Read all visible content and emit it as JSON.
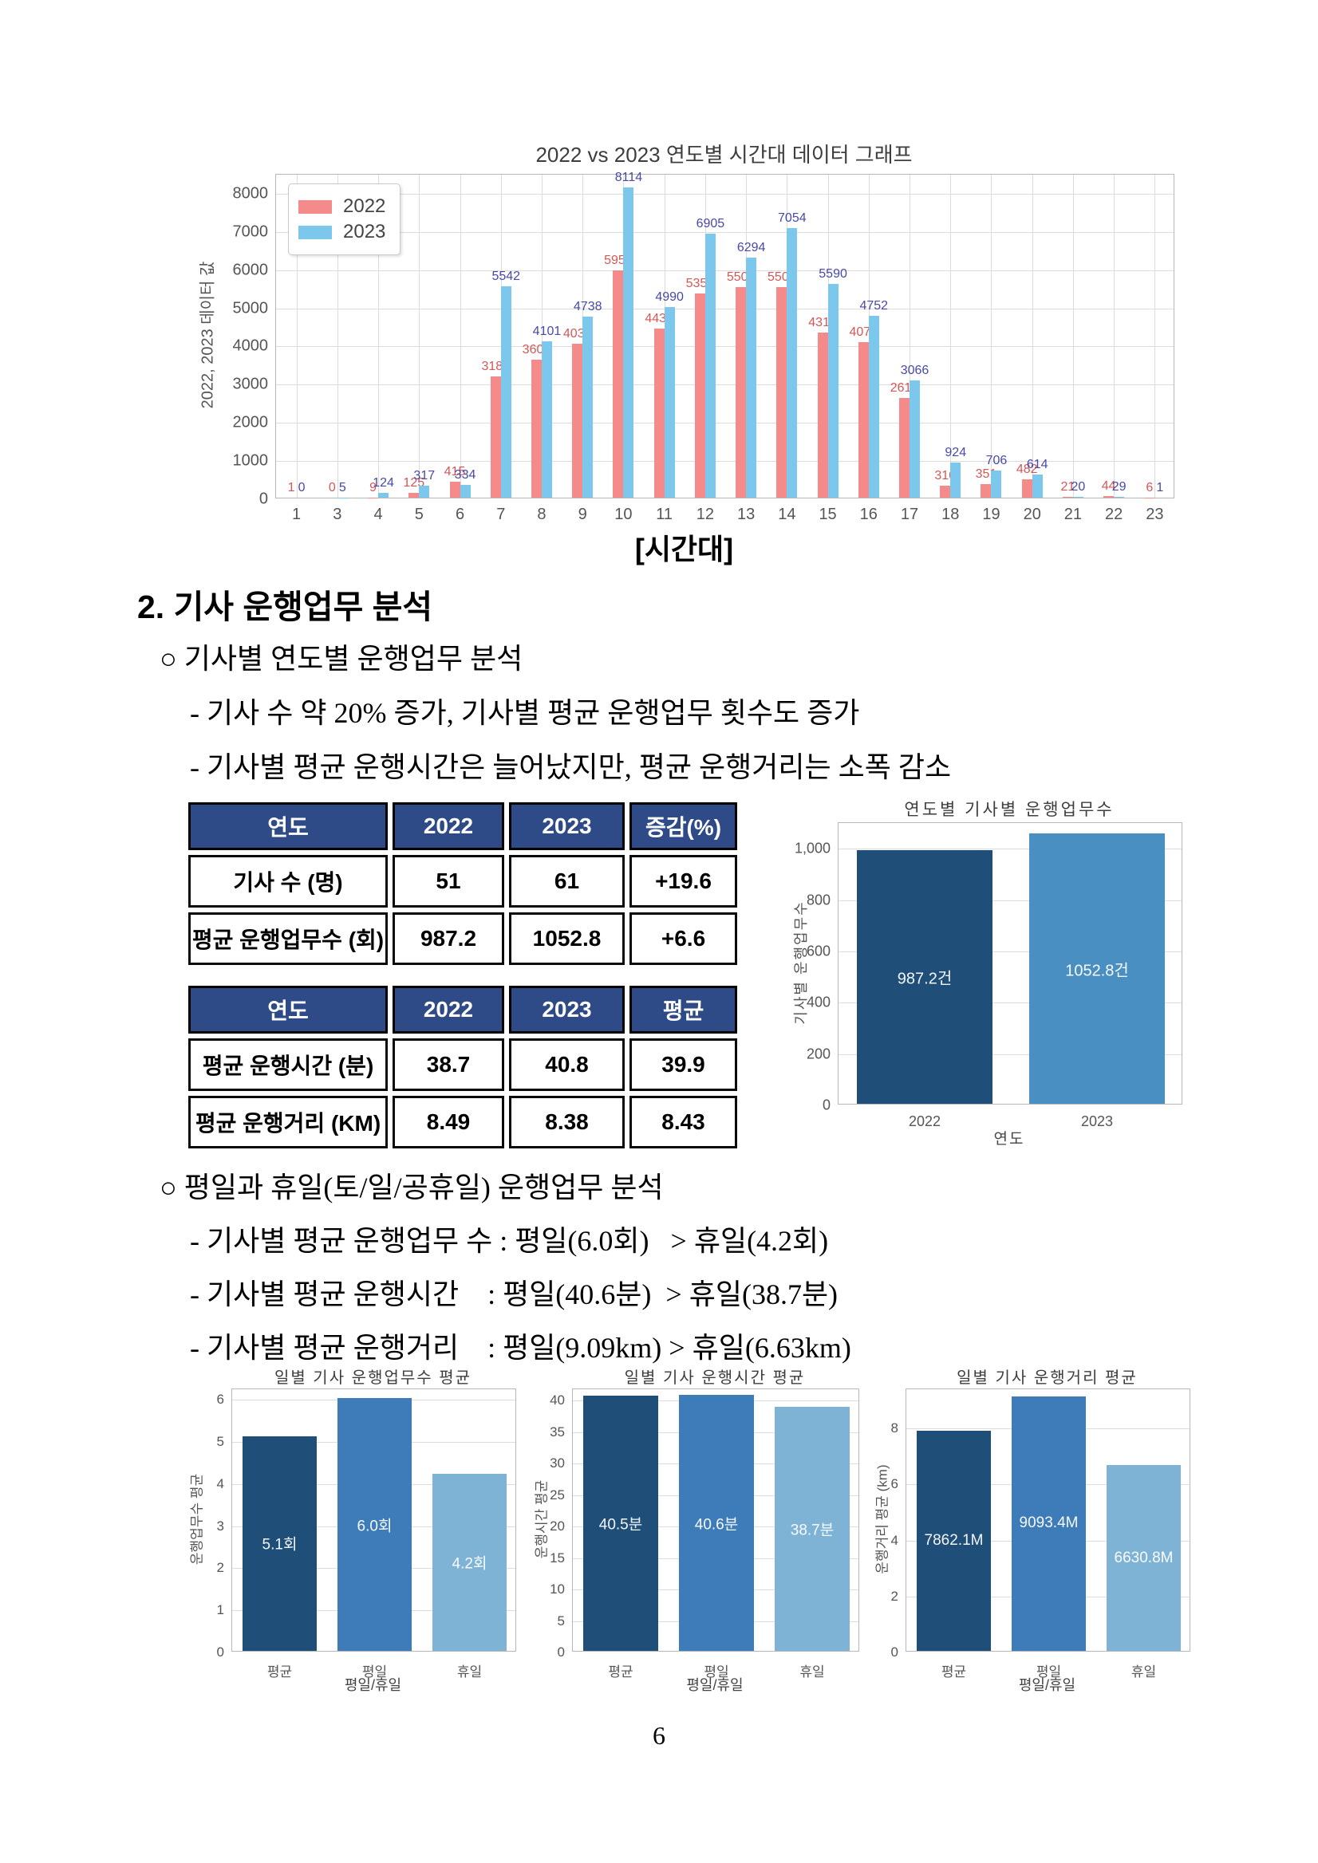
{
  "page_number": "6",
  "headings": {
    "section": "2. 기사 운행업무 분석",
    "bullet1": "○ 기사별 연도별 운행업무 분석",
    "bullet1_items": [
      "- 기사 수 약 20% 증가, 기사별 평균 운행업무 횟수도 증가",
      "- 기사별 평균 운행시간은 늘어났지만, 평균 운행거리는 소폭 감소"
    ],
    "bullet2": "○ 평일과 휴일(토/일/공휴일) 운행업무 분석",
    "bullet2_items": [
      "- 기사별 평균 운행업무 수 : 평일(6.0회)   > 휴일(4.2회)",
      "- 기사별 평균 운행시간    : 평일(40.6분)  > 휴일(38.7분)",
      "- 기사별 평균 운행거리    : 평일(9.09km) > 휴일(6.63km)"
    ]
  },
  "tables": [
    {
      "headers": [
        "연도",
        "2022",
        "2023",
        "증감(%)"
      ],
      "rows": [
        [
          "기사 수 (명)",
          "51",
          "61",
          "+19.6"
        ],
        [
          "평균 운행업무수 (회)",
          "987.2",
          "1052.8",
          "+6.6"
        ]
      ]
    },
    {
      "headers": [
        "연도",
        "2022",
        "2023",
        "평균"
      ],
      "rows": [
        [
          "평균 운행시간 (분)",
          "38.7",
          "40.8",
          "39.9"
        ],
        [
          "평균 운행거리 (KM)",
          "8.49",
          "8.38",
          "8.43"
        ]
      ]
    }
  ],
  "chart_data": [
    {
      "id": "hourly",
      "type": "bar",
      "title": "2022 vs 2023 연도별 시간대 데이터 그래프",
      "xlabel": "[시간대]",
      "ylabel": "2022, 2023 데이터 값",
      "categories": [
        "1",
        "3",
        "4",
        "5",
        "6",
        "7",
        "8",
        "9",
        "10",
        "11",
        "12",
        "13",
        "14",
        "15",
        "16",
        "17",
        "18",
        "19",
        "20",
        "21",
        "22",
        "23"
      ],
      "series": [
        {
          "name": "2022",
          "color": "#f48a8a",
          "label_color": "#d45757",
          "values": [
            1,
            0,
            9,
            125,
            415,
            3181,
            3604,
            4034,
            5954,
            4430,
            5354,
            5504,
            5507,
            4315,
            4078,
            2619,
            310,
            351,
            482,
            21,
            44,
            6
          ]
        },
        {
          "name": "2023",
          "color": "#7cc8ec",
          "label_color": "#4848a8",
          "values": [
            0,
            5,
            124,
            317,
            334,
            5542,
            4101,
            4738,
            8114,
            4990,
            6905,
            6294,
            7054,
            5590,
            4752,
            3066,
            924,
            706,
            614,
            20,
            29,
            1
          ]
        }
      ],
      "ylim": [
        0,
        8500
      ],
      "yticks": [
        0,
        1000,
        2000,
        3000,
        4000,
        5000,
        6000,
        7000,
        8000
      ],
      "legend_position": "upper left",
      "grid": true
    },
    {
      "id": "yearly",
      "type": "bar",
      "title": "연도별 기사별 운행업무수",
      "xlabel": "연도",
      "ylabel": "기사별 운행업무수",
      "categories": [
        "2022",
        "2023"
      ],
      "values": [
        987.2,
        1052.8
      ],
      "bar_labels": [
        "987.2건",
        "1052.8건"
      ],
      "colors": [
        "#1f4e79",
        "#4a8fc2"
      ],
      "ylim": [
        0,
        1100
      ],
      "yticks": [
        0,
        200,
        400,
        600,
        800,
        1000
      ],
      "ytick_labels": [
        "0",
        "200",
        "400",
        "600",
        "800",
        "1,000"
      ],
      "grid": true
    },
    {
      "id": "daily-count",
      "type": "bar",
      "title": "일별 기사 운행업무수 평균",
      "xlabel": "평일/휴일",
      "ylabel": "운행업무수 평균",
      "categories": [
        "평균",
        "평일",
        "휴일"
      ],
      "values": [
        5.1,
        6.0,
        4.2
      ],
      "bar_labels": [
        "5.1회",
        "6.0회",
        "4.2회"
      ],
      "colors": [
        "#1f4e79",
        "#3d7cb8",
        "#7fb3d6"
      ],
      "ylim": [
        0,
        6.25
      ],
      "yticks": [
        0,
        1,
        2,
        3,
        4,
        5,
        6
      ],
      "grid": true
    },
    {
      "id": "daily-minutes",
      "type": "bar",
      "title": "일별 기사 운행시간 평균",
      "xlabel": "평일/휴일",
      "ylabel": "운행시간 평균",
      "categories": [
        "평균",
        "평일",
        "휴일"
      ],
      "values": [
        40.5,
        40.6,
        38.7
      ],
      "bar_labels": [
        "40.5분",
        "40.6분",
        "38.7분"
      ],
      "colors": [
        "#1f4e79",
        "#3d7cb8",
        "#7fb3d6"
      ],
      "ylim": [
        0,
        41.8
      ],
      "yticks": [
        0,
        5,
        10,
        15,
        20,
        25,
        30,
        35,
        40
      ],
      "grid": true
    },
    {
      "id": "daily-distance",
      "type": "bar",
      "title": "일별 기사 운행거리 평균",
      "xlabel": "평일/휴일",
      "ylabel": "운행거리 평균 (km)",
      "categories": [
        "평균",
        "평일",
        "휴일"
      ],
      "values": [
        7.8621,
        9.0934,
        6.6308
      ],
      "bar_labels": [
        "7862.1M",
        "9093.4M",
        "6630.8M"
      ],
      "colors": [
        "#1f4e79",
        "#3d7cb8",
        "#7fb3d6"
      ],
      "ylim": [
        0,
        9.4
      ],
      "yticks": [
        0,
        2,
        4,
        6,
        8
      ],
      "grid": true
    }
  ]
}
